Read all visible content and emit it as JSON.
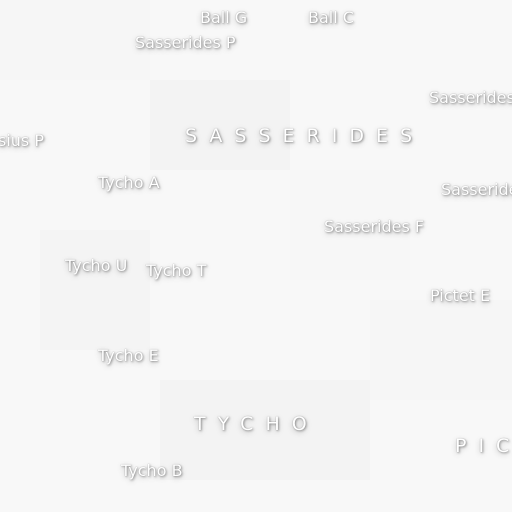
{
  "map": {
    "background_color": "#f8f8f8",
    "label_color": "#ffffff",
    "labels": {
      "ball_g": "Ball G",
      "ball_c": "Ball C",
      "sasserides_p": "Sasserides P",
      "sasserides_right_top": "Sasserides",
      "sasserides_feature": "SASSERIDES",
      "sius_p": "sius P",
      "tycho_a": "Tycho A",
      "sasserides_right_mid": "Sasseride",
      "sasserides_f": "Sasserides F",
      "tycho_u": "Tycho U",
      "tycho_t": "Tycho T",
      "pictet_e": "Pictet E",
      "tycho_e": "Tycho E",
      "tycho_feature": "TYCHO",
      "pic_feature": "PIC",
      "tycho_b": "Tycho B"
    }
  }
}
